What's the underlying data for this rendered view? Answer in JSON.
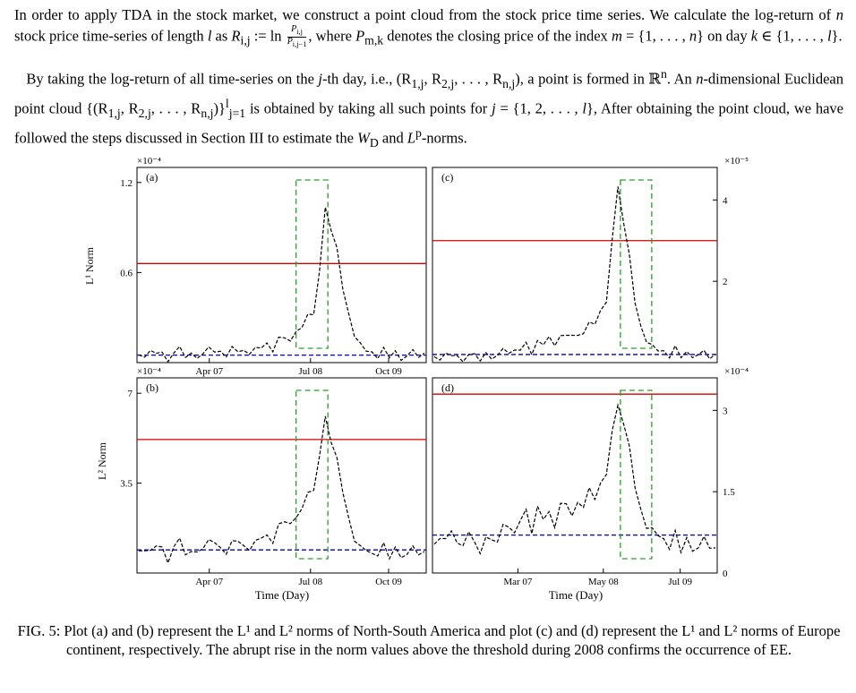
{
  "paragraph1": {
    "text1": "In order to apply TDA in the stock market, we construct a point cloud from the stock price time series. We calculate the log-return of ",
    "n": "n",
    "text2": " stock price time-series of length ",
    "l": "l",
    "text3": " as ",
    "R": "R",
    "sub_ij": "i,j",
    "text4": " := ln ",
    "frac_num": "P",
    "frac_num_sub": "i,j",
    "frac_den": "P",
    "frac_den_sub": "i,j−1",
    "text5": ", where ",
    "P": "P",
    "sub_mk": "m,k",
    "text6": " denotes the closing price of the index ",
    "m": "m",
    "text7": " = {1, . . . , ",
    "n2": "n",
    "text8": "} on day ",
    "k": "k",
    "text9": " ∈ {1, . . . , ",
    "l2": "l",
    "text10": "}."
  },
  "paragraph2": {
    "text1": "By taking the log-return of all time-series on the ",
    "j": "j",
    "text2": "-th day, i.e., (R",
    "sub1": "1,j",
    "text3": ", R",
    "sub2": "2,j",
    "text4": ", . . . , R",
    "subn": "n,j",
    "text5": "), a point is formed in ℝ",
    "supn": "n",
    "text6": ". An ",
    "n3": "n",
    "text7": "-dimensional Euclidean point cloud {(R",
    "sub3": "1,j",
    "text8": ", R",
    "sub4": "2,j",
    "text9": ", . . . , R",
    "sub5": "n,j",
    "text10": ")}",
    "set_sup": "l",
    "set_sub": "j=1",
    "text11": " is obtained by taking all such points for ",
    "j2": "j",
    "text12": " = {1, 2, . . . , ",
    "l3": "l",
    "text13": "}, After obtaining the point cloud, we have followed the steps discussed in Section III to estimate the ",
    "W": "W",
    "W_sub": "D",
    "text14": " and ",
    "L": "L",
    "L_sup": "p",
    "text15": "-norms."
  },
  "figure": {
    "left_ylabel_top": "L¹ Norm",
    "left_ylabel_bottom": "L² Norm",
    "left_xlabel": "Time (Day)",
    "right_xlabel": "Time (Day)"
  },
  "colors": {
    "threshold": "#d40000",
    "baseline": "#0000cc",
    "box": "#2ca02c",
    "signal": "#000000"
  },
  "chart_data": [
    {
      "type": "line",
      "panel": "(a)",
      "multiplier": "×10⁻⁴",
      "y_ticks": [
        "0.6",
        "1.2"
      ],
      "y_tick_values": [
        0.6,
        1.2
      ],
      "ylim": [
        0,
        1.3
      ],
      "x_ticks": [
        "Apr 07",
        "Jul 08",
        "Oct 09"
      ],
      "x_tick_values": [
        0.25,
        0.6,
        0.87
      ],
      "threshold": 0.66,
      "baseline": 0.05,
      "event_window": [
        0.55,
        0.66
      ],
      "series": [
        {
          "values": [
            0.04,
            0.06,
            0.05,
            0.07,
            0.05,
            0.04,
            0.06,
            0.08,
            0.05,
            0.04,
            0.06,
            0.05,
            0.07,
            0.09,
            0.06,
            0.05,
            0.08,
            0.1,
            0.07,
            0.06,
            0.09,
            0.12,
            0.1,
            0.08,
            0.15,
            0.2,
            0.14,
            0.18,
            0.25,
            0.3,
            0.35,
            0.6,
            1.0,
            0.9,
            0.75,
            0.5,
            0.3,
            0.2,
            0.12,
            0.08,
            0.06,
            0.05,
            0.07,
            0.04,
            0.06,
            0.05,
            0.04,
            0.06,
            0.05,
            0.04
          ]
        }
      ]
    },
    {
      "type": "line",
      "panel": "(b)",
      "multiplier": "×10⁻⁴",
      "y_ticks": [
        "3.5",
        "7"
      ],
      "y_tick_values": [
        3.5,
        7
      ],
      "ylim": [
        0,
        7.6
      ],
      "x_ticks": [
        "Apr 07",
        "Jul 08",
        "Oct 09"
      ],
      "x_tick_values": [
        0.25,
        0.6,
        0.87
      ],
      "threshold": 5.2,
      "baseline": 0.9,
      "event_window": [
        0.55,
        0.66
      ],
      "series": [
        {
          "values": [
            0.8,
            1.0,
            0.7,
            1.1,
            0.9,
            0.6,
            1.0,
            1.2,
            0.8,
            0.7,
            1.0,
            0.9,
            1.1,
            1.3,
            0.9,
            0.8,
            1.1,
            1.4,
            1.0,
            0.9,
            1.2,
            1.5,
            1.3,
            1.2,
            1.8,
            2.2,
            1.9,
            2.0,
            2.6,
            3.0,
            3.4,
            4.5,
            5.9,
            5.2,
            4.4,
            3.2,
            2.0,
            1.4,
            1.0,
            0.9,
            0.7,
            0.8,
            1.0,
            0.6,
            0.9,
            0.8,
            0.7,
            0.9,
            0.8,
            0.7
          ]
        }
      ]
    },
    {
      "type": "line",
      "panel": "(c)",
      "multiplier": "×10⁻⁵",
      "y_ticks": [
        "2",
        "4"
      ],
      "y_tick_values": [
        2,
        4
      ],
      "ylim": [
        0,
        4.8
      ],
      "x_ticks": [],
      "x_tick_values": [],
      "threshold": 3.0,
      "baseline": 0.2,
      "event_window": [
        0.66,
        0.77
      ],
      "series": [
        {
          "values": [
            0.1,
            0.15,
            0.12,
            0.2,
            0.1,
            0.14,
            0.18,
            0.12,
            0.1,
            0.16,
            0.2,
            0.15,
            0.22,
            0.3,
            0.25,
            0.35,
            0.4,
            0.3,
            0.5,
            0.45,
            0.6,
            0.5,
            0.55,
            0.7,
            0.6,
            0.8,
            0.7,
            0.9,
            1.0,
            1.2,
            1.6,
            3.0,
            4.2,
            3.5,
            2.6,
            1.5,
            0.8,
            0.6,
            0.4,
            0.3,
            0.25,
            0.2,
            0.3,
            0.15,
            0.2,
            0.25,
            0.18,
            0.2,
            0.15,
            0.12
          ]
        }
      ]
    },
    {
      "type": "line",
      "panel": "(d)",
      "multiplier": "×10⁻⁴",
      "y_ticks": [
        "0",
        "1.5",
        "3"
      ],
      "y_tick_values": [
        0,
        1.5,
        3
      ],
      "ylim": [
        0,
        3.6
      ],
      "x_ticks": [
        "Mar 07",
        "May 08",
        "Jul 09"
      ],
      "x_tick_values": [
        0.3,
        0.6,
        0.87
      ],
      "threshold": 3.3,
      "baseline": 0.7,
      "event_window": [
        0.66,
        0.77
      ],
      "series": [
        {
          "values": [
            0.5,
            0.7,
            0.55,
            0.8,
            0.5,
            0.6,
            0.75,
            0.5,
            0.4,
            0.6,
            0.7,
            0.55,
            0.8,
            0.9,
            0.7,
            1.0,
            1.1,
            0.8,
            1.2,
            1.0,
            1.1,
            0.9,
            1.2,
            1.3,
            1.0,
            1.4,
            1.2,
            1.5,
            1.4,
            1.6,
            1.9,
            2.6,
            3.0,
            2.8,
            2.3,
            1.6,
            1.1,
            0.9,
            0.8,
            0.7,
            0.6,
            0.5,
            0.7,
            0.4,
            0.6,
            0.5,
            0.45,
            0.6,
            0.5,
            0.4
          ]
        }
      ]
    }
  ],
  "caption": "FIG. 5: Plot (a) and (b) represent the L¹ and L² norms of North-South America and plot (c) and (d) represent the L¹ and L² norms of Europe continent, respectively. The abrupt rise in the norm values above the threshold during 2008 confirms the occurrence of EE."
}
